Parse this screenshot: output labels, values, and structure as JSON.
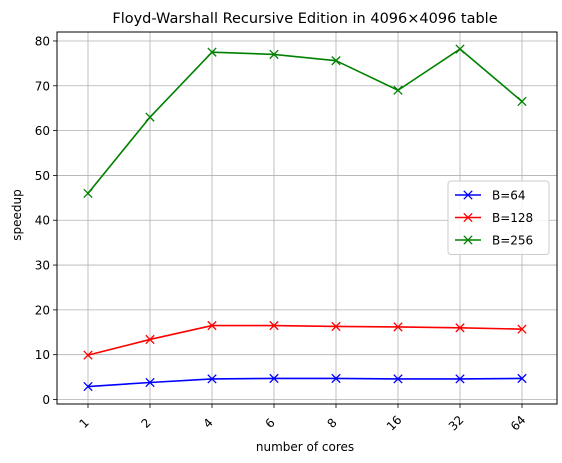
{
  "chart_data": {
    "type": "line",
    "title": "Floyd-Warshall Recursive Edition in 4096×4096 table",
    "xlabel": "number of cores",
    "ylabel": "speedup",
    "categories": [
      "1",
      "2",
      "4",
      "6",
      "8",
      "16",
      "32",
      "64"
    ],
    "ylim": [
      -1,
      82
    ],
    "yticks": [
      0,
      10,
      20,
      30,
      40,
      50,
      60,
      70,
      80
    ],
    "grid": true,
    "legend_position": "center-right",
    "marker": "x",
    "series": [
      {
        "name": "B=64",
        "color": "#0000ff",
        "values": [
          2.9,
          3.8,
          4.6,
          4.7,
          4.7,
          4.6,
          4.6,
          4.7
        ]
      },
      {
        "name": "B=128",
        "color": "#ff0000",
        "values": [
          9.9,
          13.4,
          16.5,
          16.5,
          16.3,
          16.2,
          16.0,
          15.7
        ]
      },
      {
        "name": "B=256",
        "color": "#008000",
        "values": [
          46.0,
          63.0,
          77.5,
          77.0,
          75.6,
          69.0,
          78.2,
          66.5
        ]
      }
    ]
  }
}
